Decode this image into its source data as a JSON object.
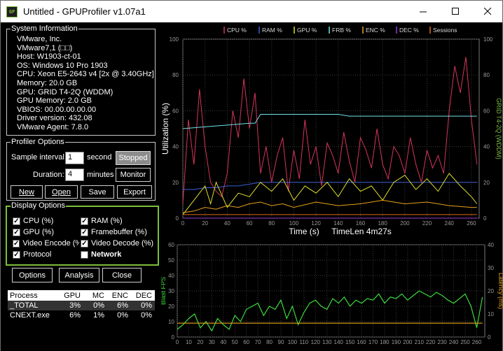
{
  "window": {
    "title": "Untitled - GPUProfiler v1.07a1",
    "icon_text": "GP"
  },
  "system_info": {
    "legend": "System Information",
    "lines": [
      "VMware, Inc.",
      "VMware7,1 (□□)",
      "Host: W1903-ct-01",
      "OS: Windows 10 Pro 1903",
      "CPU: Xeon E5-2643 v4 [2x @ 3.40GHz]",
      "Memory: 20.0 GB",
      "GPU: GRID T4-2Q (WDDM)",
      "GPU Memory: 2.0 GB",
      "VBIOS: 00.00.00.00.00",
      "Driver version: 432.08",
      "VMware Agent: 7.8.0"
    ]
  },
  "profiler_options": {
    "legend": "Profiler Options",
    "sample_label": "Sample interval:",
    "sample_value": "1",
    "sample_unit": "second",
    "duration_label": "Duration:",
    "duration_value": "4",
    "duration_unit": "minutes",
    "stopped_label": "Stopped",
    "monitor_label": "Monitor",
    "new_label": "New",
    "open_label": "Open",
    "save_label": "Save",
    "export_label": "Export"
  },
  "display_options": {
    "legend": "Display Options",
    "items": [
      {
        "label": "CPU (%)",
        "checked": true
      },
      {
        "label": "RAM (%)",
        "checked": true
      },
      {
        "label": "GPU (%)",
        "checked": true
      },
      {
        "label": "Framebuffer (%)",
        "checked": true
      },
      {
        "label": "Video Encode (%",
        "checked": true
      },
      {
        "label": "Video Decode (%)",
        "checked": true
      },
      {
        "label": "Protocol",
        "checked": true
      },
      {
        "label": "Network",
        "checked": false
      }
    ]
  },
  "bottom_buttons": {
    "options": "Options",
    "analysis": "Analysis",
    "close": "Close"
  },
  "process_table": {
    "headers": [
      "Process",
      "GPU",
      "MC",
      "ENC",
      "DEC"
    ],
    "rows": [
      [
        "_TOTAL",
        "3%",
        "0%",
        "6%",
        "0%"
      ],
      [
        "CNEXT.exe",
        "6%",
        "1%",
        "0%",
        "0%"
      ]
    ]
  },
  "colors": {
    "cpu": "#d6355a",
    "ram": "#3e5fd6",
    "gpu": "#dede2a",
    "frb": "#6fe0e8",
    "enc": "#e8a21a",
    "dec": "#9b3bd6",
    "sessions": "#e06a1a",
    "fps": "#3ed93e",
    "latency": "#e8a21a",
    "accent_green": "#7dbd3c"
  },
  "chart_data": [
    {
      "type": "line",
      "legend": [
        "CPU %",
        "RAM %",
        "GPU %",
        "FRB %",
        "ENC %",
        "DEC %",
        "Sessions"
      ],
      "ylabel": "Utilization (%)",
      "y2label": "GRID T4-2Q (WDDM)",
      "xlabel": "Time (s)",
      "subtitle": "TimeLen 4m27s",
      "xlim": [
        0,
        267
      ],
      "ylim": [
        0,
        100
      ],
      "xticks": [
        0,
        20,
        40,
        60,
        80,
        100,
        120,
        140,
        160,
        180,
        200,
        220,
        240,
        260
      ],
      "yticks": [
        0,
        20,
        40,
        60,
        80,
        100
      ],
      "series": [
        {
          "name": "CPU %",
          "x": [
            0,
            5,
            10,
            15,
            20,
            25,
            30,
            35,
            40,
            45,
            50,
            55,
            60,
            65,
            70,
            75,
            80,
            85,
            90,
            95,
            100,
            105,
            110,
            115,
            120,
            125,
            130,
            135,
            140,
            145,
            150,
            155,
            160,
            165,
            170,
            175,
            180,
            185,
            190,
            195,
            200,
            205,
            210,
            215,
            220,
            225,
            230,
            235,
            240,
            245,
            250,
            255,
            260,
            265
          ],
          "values": [
            8,
            55,
            30,
            72,
            40,
            20,
            15,
            12,
            25,
            60,
            45,
            78,
            50,
            70,
            25,
            40,
            20,
            35,
            45,
            15,
            38,
            22,
            55,
            30,
            40,
            18,
            42,
            35,
            25,
            48,
            32,
            20,
            45,
            38,
            28,
            50,
            30,
            22,
            40,
            35,
            25,
            45,
            30,
            20,
            38,
            28,
            35,
            25,
            60,
            85,
            70,
            90,
            55,
            30
          ]
        },
        {
          "name": "RAM %",
          "x": [
            0,
            10,
            20,
            30,
            40,
            50,
            60,
            70,
            80,
            100,
            120,
            140,
            160,
            180,
            200,
            220,
            240,
            260,
            265
          ],
          "values": [
            16,
            16,
            17,
            17,
            18,
            18,
            19,
            20,
            20,
            20,
            20,
            20,
            20,
            20,
            20,
            20,
            20,
            20,
            20
          ]
        },
        {
          "name": "GPU %",
          "x": [
            0,
            10,
            20,
            25,
            30,
            40,
            50,
            60,
            70,
            80,
            90,
            100,
            110,
            120,
            130,
            140,
            150,
            160,
            170,
            180,
            190,
            200,
            210,
            220,
            230,
            240,
            250,
            260,
            265
          ],
          "values": [
            2,
            10,
            18,
            8,
            20,
            6,
            14,
            12,
            20,
            15,
            22,
            10,
            18,
            14,
            20,
            12,
            22,
            15,
            18,
            10,
            20,
            24,
            16,
            22,
            15,
            25,
            18,
            12,
            8
          ]
        },
        {
          "name": "FRB %",
          "x": [
            0,
            20,
            40,
            60,
            65,
            70,
            100,
            140,
            150,
            180,
            220,
            265
          ],
          "values": [
            50,
            51,
            52,
            53,
            53,
            58,
            58,
            58,
            57,
            57,
            57,
            57
          ]
        },
        {
          "name": "ENC %",
          "x": [
            0,
            10,
            20,
            30,
            40,
            50,
            60,
            70,
            80,
            90,
            100,
            120,
            140,
            160,
            180,
            200,
            220,
            240,
            260,
            265
          ],
          "values": [
            3,
            4,
            6,
            5,
            7,
            6,
            8,
            9,
            7,
            8,
            6,
            9,
            7,
            8,
            10,
            8,
            9,
            7,
            6,
            6
          ]
        },
        {
          "name": "DEC %",
          "x": [
            0,
            265
          ],
          "values": [
            0,
            0
          ]
        },
        {
          "name": "Sessions",
          "x": [
            0,
            265
          ],
          "values": [
            2,
            2
          ]
        }
      ]
    },
    {
      "type": "line",
      "ylabel": "Blast FPS",
      "y2label": "Latency (ms)",
      "xlim": [
        0,
        267
      ],
      "ylim": [
        0,
        60
      ],
      "y2lim": [
        0,
        40
      ],
      "xticks": [
        0,
        10,
        20,
        30,
        40,
        50,
        60,
        70,
        80,
        90,
        100,
        110,
        120,
        130,
        140,
        150,
        160,
        170,
        180,
        190,
        200,
        210,
        220,
        230,
        240,
        250,
        260
      ],
      "yticks": [
        0,
        10,
        20,
        30,
        40,
        50,
        60
      ],
      "y2ticks": [
        0,
        10,
        20,
        30,
        40
      ],
      "series": [
        {
          "name": "Blast FPS",
          "x": [
            0,
            5,
            10,
            15,
            20,
            25,
            30,
            35,
            40,
            45,
            50,
            55,
            60,
            65,
            70,
            75,
            80,
            85,
            90,
            95,
            100,
            105,
            110,
            115,
            120,
            125,
            130,
            135,
            140,
            145,
            150,
            155,
            160,
            165,
            170,
            175,
            180,
            185,
            190,
            195,
            200,
            205,
            210,
            215,
            220,
            225,
            230,
            235,
            240,
            245,
            250,
            255,
            260,
            265
          ],
          "values": [
            5,
            8,
            12,
            15,
            6,
            10,
            4,
            12,
            8,
            5,
            14,
            10,
            18,
            20,
            22,
            14,
            20,
            18,
            24,
            12,
            20,
            8,
            16,
            22,
            24,
            20,
            18,
            25,
            22,
            26,
            20,
            24,
            22,
            25,
            24,
            28,
            22,
            26,
            25,
            28,
            24,
            27,
            30,
            28,
            26,
            29,
            27,
            24,
            22,
            25,
            28,
            20,
            6,
            26
          ]
        },
        {
          "name": "Latency (ms)",
          "x": [
            0,
            40,
            80,
            120,
            160,
            200,
            240,
            265
          ],
          "values": [
            6,
            6,
            6,
            6,
            6,
            6,
            6,
            6
          ]
        }
      ]
    }
  ]
}
